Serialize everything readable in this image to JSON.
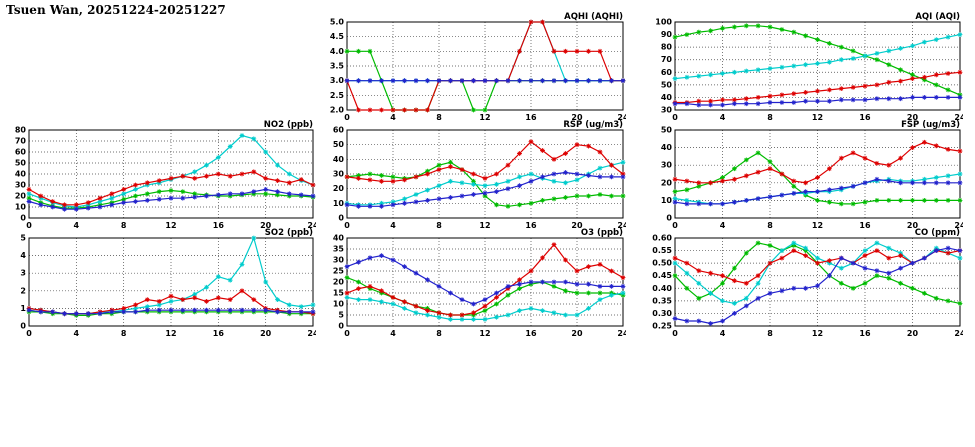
{
  "page_title": "Tsuen Wan, 20251224-20251227",
  "colors": {
    "series_red": "#dd0000",
    "series_green": "#00bb00",
    "series_cyan": "#00cccc",
    "series_blue": "#2222cc",
    "grid": "#444444",
    "frame": "#000000"
  },
  "chart_data": [
    {
      "id": "aqhi",
      "type": "line",
      "title": "AQHI (AQHI)",
      "xlim": [
        0,
        24
      ],
      "xticks": [
        0,
        4,
        8,
        12,
        16,
        20,
        24
      ],
      "ylim": [
        2,
        5
      ],
      "yticks": [
        "2.0",
        "2.5",
        "3.0",
        "3.5",
        "4.0",
        "4.5",
        "5.0"
      ],
      "grid": true,
      "series": [
        {
          "color": "#00bb00",
          "values": [
            4,
            4,
            4,
            3,
            2,
            2,
            2,
            2,
            3,
            3,
            3,
            2,
            2,
            3,
            3,
            3,
            3,
            3,
            3,
            3,
            3,
            3,
            3,
            3,
            3
          ]
        },
        {
          "color": "#00cccc",
          "values": [
            3,
            3,
            3,
            3,
            3,
            3,
            3,
            3,
            3,
            3,
            3,
            3,
            3,
            3,
            3,
            4,
            5,
            5,
            4,
            3,
            3,
            3,
            3,
            3,
            3
          ]
        },
        {
          "color": "#dd0000",
          "values": [
            3,
            2,
            2,
            2,
            2,
            2,
            2,
            2,
            3,
            3,
            3,
            3,
            3,
            3,
            3,
            4,
            5,
            5,
            4,
            4,
            4,
            4,
            4,
            3,
            3
          ]
        },
        {
          "color": "#2222cc",
          "values": [
            3,
            3,
            3,
            3,
            3,
            3,
            3,
            3,
            3,
            3,
            3,
            3,
            3,
            3,
            3,
            3,
            3,
            3,
            3,
            3,
            3,
            3,
            3,
            3,
            3
          ]
        }
      ]
    },
    {
      "id": "aqi",
      "type": "line",
      "title": "AQI (AQI)",
      "xlim": [
        0,
        24
      ],
      "xticks": [
        0,
        4,
        8,
        12,
        16,
        20,
        24
      ],
      "ylim": [
        30,
        100
      ],
      "yticks": [
        "30",
        "40",
        "50",
        "60",
        "70",
        "80",
        "90",
        "100"
      ],
      "grid": true,
      "series": [
        {
          "color": "#00bb00",
          "values": [
            88,
            90,
            92,
            93,
            95,
            96,
            97,
            97,
            96,
            94,
            92,
            89,
            86,
            83,
            80,
            77,
            73,
            70,
            66,
            62,
            58,
            54,
            50,
            46,
            42
          ]
        },
        {
          "color": "#00cccc",
          "values": [
            55,
            56,
            57,
            58,
            59,
            60,
            61,
            62,
            63,
            64,
            65,
            66,
            67,
            68,
            70,
            71,
            73,
            75,
            77,
            79,
            81,
            84,
            86,
            88,
            90
          ]
        },
        {
          "color": "#dd0000",
          "values": [
            36,
            36,
            37,
            37,
            38,
            38,
            39,
            40,
            41,
            42,
            43,
            44,
            45,
            46,
            47,
            48,
            49,
            50,
            52,
            53,
            55,
            56,
            58,
            59,
            60
          ]
        },
        {
          "color": "#2222cc",
          "values": [
            35,
            35,
            34,
            34,
            34,
            35,
            35,
            35,
            36,
            36,
            36,
            37,
            37,
            37,
            38,
            38,
            38,
            39,
            39,
            39,
            40,
            40,
            40,
            40,
            40
          ]
        }
      ]
    },
    {
      "id": "no2",
      "type": "line",
      "title": "NO2 (ppb)",
      "xlim": [
        0,
        24
      ],
      "xticks": [
        0,
        4,
        8,
        12,
        16,
        20,
        24
      ],
      "ylim": [
        0,
        80
      ],
      "yticks": [
        "0",
        "10",
        "20",
        "30",
        "40",
        "50",
        "60",
        "70",
        "80"
      ],
      "grid": true,
      "series": [
        {
          "color": "#00bb00",
          "values": [
            18,
            14,
            11,
            9,
            9,
            10,
            12,
            14,
            17,
            20,
            22,
            24,
            25,
            24,
            22,
            21,
            20,
            20,
            21,
            22,
            22,
            21,
            20,
            20,
            19
          ]
        },
        {
          "color": "#00cccc",
          "values": [
            22,
            18,
            14,
            11,
            10,
            12,
            15,
            18,
            22,
            26,
            30,
            32,
            35,
            38,
            42,
            48,
            55,
            65,
            75,
            72,
            60,
            48,
            40,
            34,
            30
          ]
        },
        {
          "color": "#dd0000",
          "values": [
            26,
            20,
            15,
            12,
            12,
            14,
            18,
            22,
            26,
            30,
            32,
            34,
            36,
            38,
            36,
            38,
            40,
            38,
            40,
            42,
            36,
            34,
            32,
            35,
            30
          ]
        },
        {
          "color": "#2222cc",
          "values": [
            15,
            12,
            10,
            8,
            8,
            9,
            10,
            12,
            14,
            15,
            16,
            17,
            18,
            18,
            19,
            20,
            21,
            22,
            22,
            24,
            26,
            24,
            22,
            21,
            20
          ]
        }
      ]
    },
    {
      "id": "rsp",
      "type": "line",
      "title": "RSP (ug/m3)",
      "xlim": [
        0,
        24
      ],
      "xticks": [
        0,
        4,
        8,
        12,
        16,
        20,
        24
      ],
      "ylim": [
        0,
        60
      ],
      "yticks": [
        "0",
        "10",
        "20",
        "30",
        "40",
        "50",
        "60"
      ],
      "grid": true,
      "series": [
        {
          "color": "#00bb00",
          "values": [
            28,
            29,
            30,
            29,
            28,
            27,
            28,
            32,
            36,
            38,
            33,
            25,
            15,
            9,
            8,
            9,
            10,
            12,
            13,
            14,
            15,
            15,
            16,
            15,
            15
          ]
        },
        {
          "color": "#00cccc",
          "values": [
            10,
            9,
            9,
            10,
            11,
            13,
            16,
            19,
            22,
            25,
            24,
            23,
            22,
            23,
            25,
            28,
            30,
            27,
            25,
            24,
            26,
            30,
            34,
            36,
            38
          ]
        },
        {
          "color": "#dd0000",
          "values": [
            28,
            27,
            26,
            25,
            25,
            26,
            28,
            30,
            33,
            35,
            33,
            30,
            27,
            30,
            36,
            44,
            52,
            46,
            40,
            44,
            50,
            49,
            45,
            36,
            30
          ]
        },
        {
          "color": "#2222cc",
          "values": [
            9,
            8,
            8,
            8,
            9,
            10,
            11,
            12,
            13,
            14,
            15,
            16,
            17,
            18,
            20,
            22,
            25,
            28,
            30,
            31,
            30,
            29,
            28,
            28,
            28
          ]
        }
      ]
    },
    {
      "id": "fsp",
      "type": "line",
      "title": "FSP (ug/m3)",
      "xlim": [
        0,
        24
      ],
      "xticks": [
        0,
        4,
        8,
        12,
        16,
        20,
        24
      ],
      "ylim": [
        0,
        50
      ],
      "yticks": [
        "0",
        "10",
        "20",
        "30",
        "40",
        "50"
      ],
      "grid": true,
      "series": [
        {
          "color": "#00bb00",
          "values": [
            15,
            16,
            18,
            20,
            23,
            28,
            33,
            37,
            32,
            25,
            18,
            13,
            10,
            9,
            8,
            8,
            9,
            10,
            10,
            10,
            10,
            10,
            10,
            10,
            10
          ]
        },
        {
          "color": "#00cccc",
          "values": [
            11,
            10,
            9,
            8,
            8,
            9,
            10,
            11,
            12,
            13,
            14,
            14,
            15,
            15,
            16,
            18,
            20,
            21,
            22,
            21,
            21,
            22,
            23,
            24,
            25
          ]
        },
        {
          "color": "#dd0000",
          "values": [
            22,
            21,
            20,
            20,
            21,
            22,
            24,
            26,
            28,
            25,
            21,
            20,
            23,
            28,
            34,
            37,
            34,
            31,
            30,
            34,
            40,
            43,
            41,
            39,
            38
          ]
        },
        {
          "color": "#2222cc",
          "values": [
            9,
            8,
            8,
            8,
            8,
            9,
            10,
            11,
            12,
            13,
            14,
            15,
            15,
            16,
            17,
            18,
            20,
            22,
            21,
            20,
            20,
            20,
            20,
            20,
            20
          ]
        }
      ]
    },
    {
      "id": "so2",
      "type": "line",
      "title": "SO2 (ppb)",
      "xlim": [
        0,
        24
      ],
      "xticks": [
        0,
        4,
        8,
        12,
        16,
        20,
        24
      ],
      "ylim": [
        0,
        5
      ],
      "yticks": [
        "0",
        "1",
        "2",
        "3",
        "4",
        "5"
      ],
      "grid": true,
      "series": [
        {
          "color": "#00bb00",
          "values": [
            0.8,
            0.8,
            0.7,
            0.7,
            0.6,
            0.6,
            0.7,
            0.7,
            0.8,
            0.8,
            0.8,
            0.8,
            0.8,
            0.8,
            0.8,
            0.8,
            0.8,
            0.8,
            0.8,
            0.8,
            0.8,
            0.8,
            0.7,
            0.7,
            0.7
          ]
        },
        {
          "color": "#00cccc",
          "values": [
            1.0,
            0.9,
            0.8,
            0.7,
            0.7,
            0.7,
            0.8,
            0.8,
            0.9,
            1.0,
            1.1,
            1.2,
            1.4,
            1.5,
            1.8,
            2.2,
            2.8,
            2.6,
            3.5,
            5.0,
            2.5,
            1.5,
            1.2,
            1.1,
            1.2
          ]
        },
        {
          "color": "#dd0000",
          "values": [
            1.0,
            0.9,
            0.8,
            0.7,
            0.7,
            0.7,
            0.8,
            0.9,
            1.0,
            1.2,
            1.5,
            1.4,
            1.7,
            1.5,
            1.6,
            1.4,
            1.6,
            1.5,
            2.0,
            1.5,
            1.0,
            0.9,
            0.8,
            0.8,
            0.7
          ]
        },
        {
          "color": "#2222cc",
          "values": [
            0.9,
            0.8,
            0.8,
            0.7,
            0.7,
            0.7,
            0.7,
            0.8,
            0.8,
            0.8,
            0.9,
            0.9,
            0.9,
            0.9,
            0.9,
            0.9,
            0.9,
            0.9,
            0.9,
            0.9,
            0.9,
            0.8,
            0.8,
            0.8,
            0.8
          ]
        }
      ]
    },
    {
      "id": "o3",
      "type": "line",
      "title": "O3 (ppb)",
      "xlim": [
        0,
        24
      ],
      "xticks": [
        0,
        4,
        8,
        12,
        16,
        20,
        24
      ],
      "ylim": [
        0,
        40
      ],
      "yticks": [
        "0",
        "5",
        "10",
        "15",
        "20",
        "25",
        "30",
        "35",
        "40"
      ],
      "grid": true,
      "series": [
        {
          "color": "#00bb00",
          "values": [
            22,
            20,
            17,
            15,
            13,
            11,
            9,
            8,
            6,
            5,
            5,
            5,
            7,
            10,
            14,
            17,
            19,
            20,
            18,
            16,
            15,
            15,
            15,
            15,
            14
          ]
        },
        {
          "color": "#00cccc",
          "values": [
            13,
            12,
            12,
            11,
            10,
            8,
            6,
            5,
            4,
            3,
            3,
            3,
            3,
            4,
            5,
            7,
            8,
            7,
            6,
            5,
            5,
            8,
            12,
            14,
            15
          ]
        },
        {
          "color": "#dd0000",
          "values": [
            15,
            17,
            18,
            16,
            13,
            11,
            9,
            7,
            6,
            5,
            5,
            6,
            9,
            13,
            17,
            21,
            25,
            31,
            37,
            30,
            25,
            27,
            28,
            25,
            22
          ]
        },
        {
          "color": "#2222cc",
          "values": [
            27,
            29,
            31,
            32,
            30,
            27,
            24,
            21,
            18,
            15,
            12,
            10,
            12,
            15,
            18,
            19,
            20,
            20,
            20,
            20,
            19,
            19,
            18,
            18,
            18
          ]
        }
      ]
    },
    {
      "id": "co",
      "type": "line",
      "title": "CO (ppm)",
      "xlim": [
        0,
        24
      ],
      "xticks": [
        0,
        4,
        8,
        12,
        16,
        20,
        24
      ],
      "ylim": [
        0.25,
        0.6
      ],
      "yticks": [
        "0.25",
        "0.30",
        "0.35",
        "0.40",
        "0.45",
        "0.50",
        "0.55",
        "0.60"
      ],
      "grid": true,
      "series": [
        {
          "color": "#00bb00",
          "values": [
            0.45,
            0.4,
            0.36,
            0.38,
            0.42,
            0.48,
            0.54,
            0.58,
            0.57,
            0.55,
            0.57,
            0.55,
            0.5,
            0.45,
            0.42,
            0.4,
            0.42,
            0.45,
            0.44,
            0.42,
            0.4,
            0.38,
            0.36,
            0.35,
            0.34
          ]
        },
        {
          "color": "#00cccc",
          "values": [
            0.5,
            0.46,
            0.42,
            0.38,
            0.35,
            0.34,
            0.36,
            0.42,
            0.5,
            0.55,
            0.58,
            0.56,
            0.52,
            0.5,
            0.48,
            0.5,
            0.55,
            0.58,
            0.56,
            0.54,
            0.5,
            0.52,
            0.56,
            0.54,
            0.52
          ]
        },
        {
          "color": "#dd0000",
          "values": [
            0.52,
            0.5,
            0.47,
            0.46,
            0.45,
            0.43,
            0.42,
            0.45,
            0.5,
            0.52,
            0.55,
            0.53,
            0.5,
            0.51,
            0.52,
            0.5,
            0.53,
            0.55,
            0.52,
            0.53,
            0.5,
            0.52,
            0.55,
            0.54,
            0.55
          ]
        },
        {
          "color": "#2222cc",
          "values": [
            0.28,
            0.27,
            0.27,
            0.26,
            0.27,
            0.3,
            0.33,
            0.36,
            0.38,
            0.39,
            0.4,
            0.4,
            0.41,
            0.45,
            0.52,
            0.5,
            0.48,
            0.47,
            0.46,
            0.48,
            0.5,
            0.52,
            0.55,
            0.56,
            0.55
          ]
        }
      ]
    }
  ]
}
